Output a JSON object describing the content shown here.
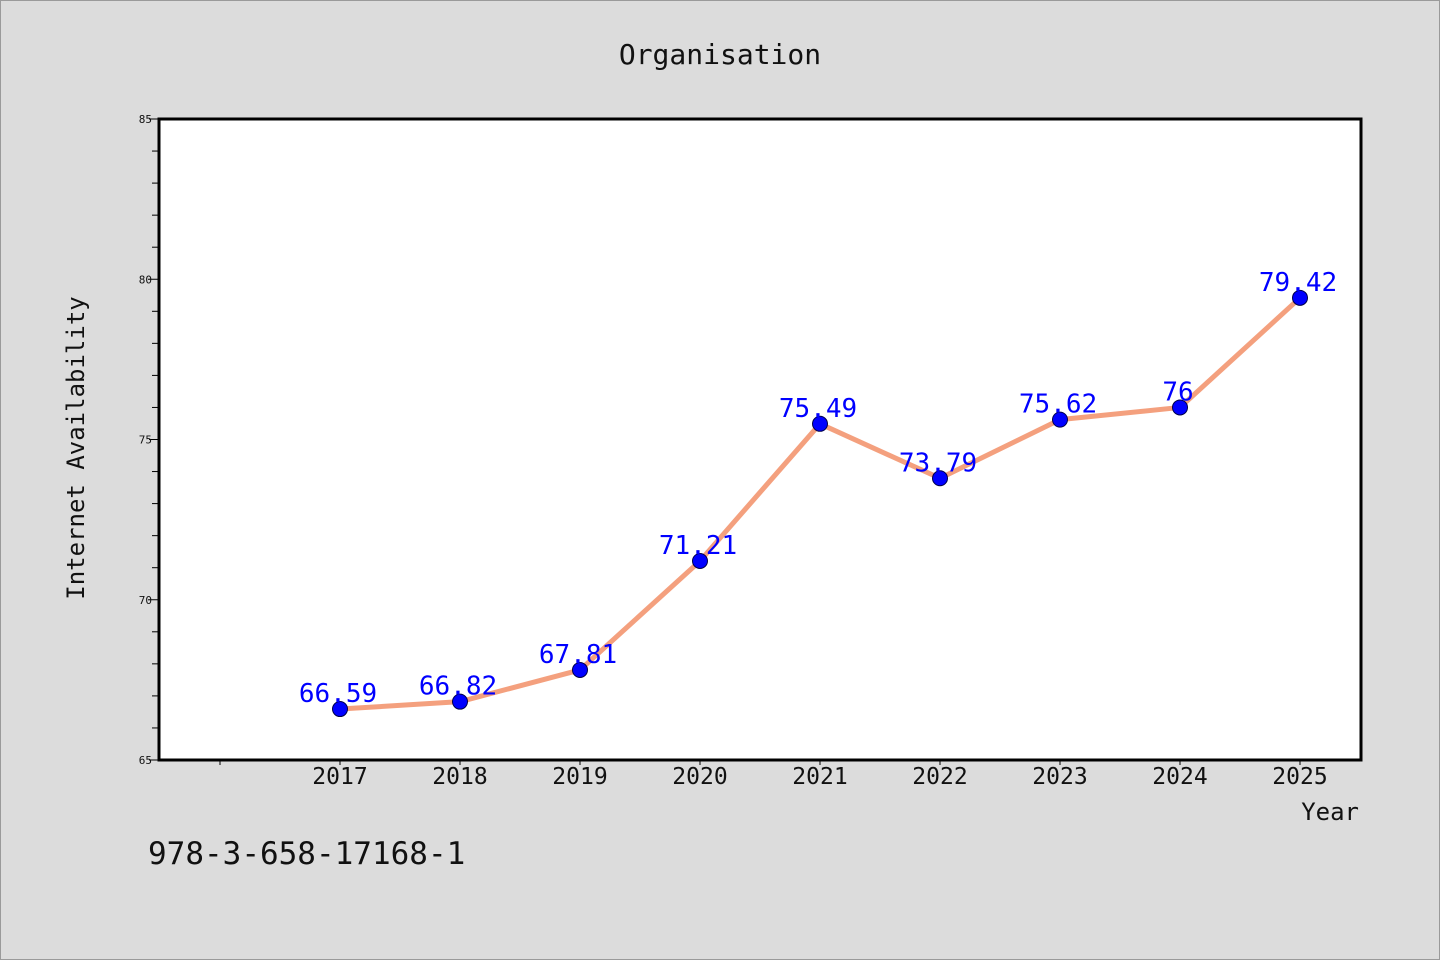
{
  "chart_data": {
    "type": "line",
    "title": "Organisation",
    "xlabel": "Year",
    "ylabel": "Internet Availability",
    "categories": [
      "2017",
      "2018",
      "2019",
      "2020",
      "2021",
      "2022",
      "2023",
      "2024",
      "2025"
    ],
    "values": [
      66.59,
      66.82,
      67.81,
      71.21,
      75.49,
      73.79,
      75.62,
      76,
      79.42
    ],
    "value_labels": [
      "66.59",
      "66.82",
      "67.81",
      "71.21",
      "75.49",
      "73.79",
      "75.62",
      "76",
      "79.42"
    ],
    "ylim": [
      65,
      85
    ],
    "yticks": [
      "65",
      "70",
      "75",
      "80",
      "85"
    ],
    "grid": false,
    "legend": "none",
    "colors": {
      "line": "#f4a07e",
      "marker": "#0000ff",
      "label": "#0000ff"
    }
  },
  "footer": {
    "isbn": "978-3-658-17168-1"
  }
}
